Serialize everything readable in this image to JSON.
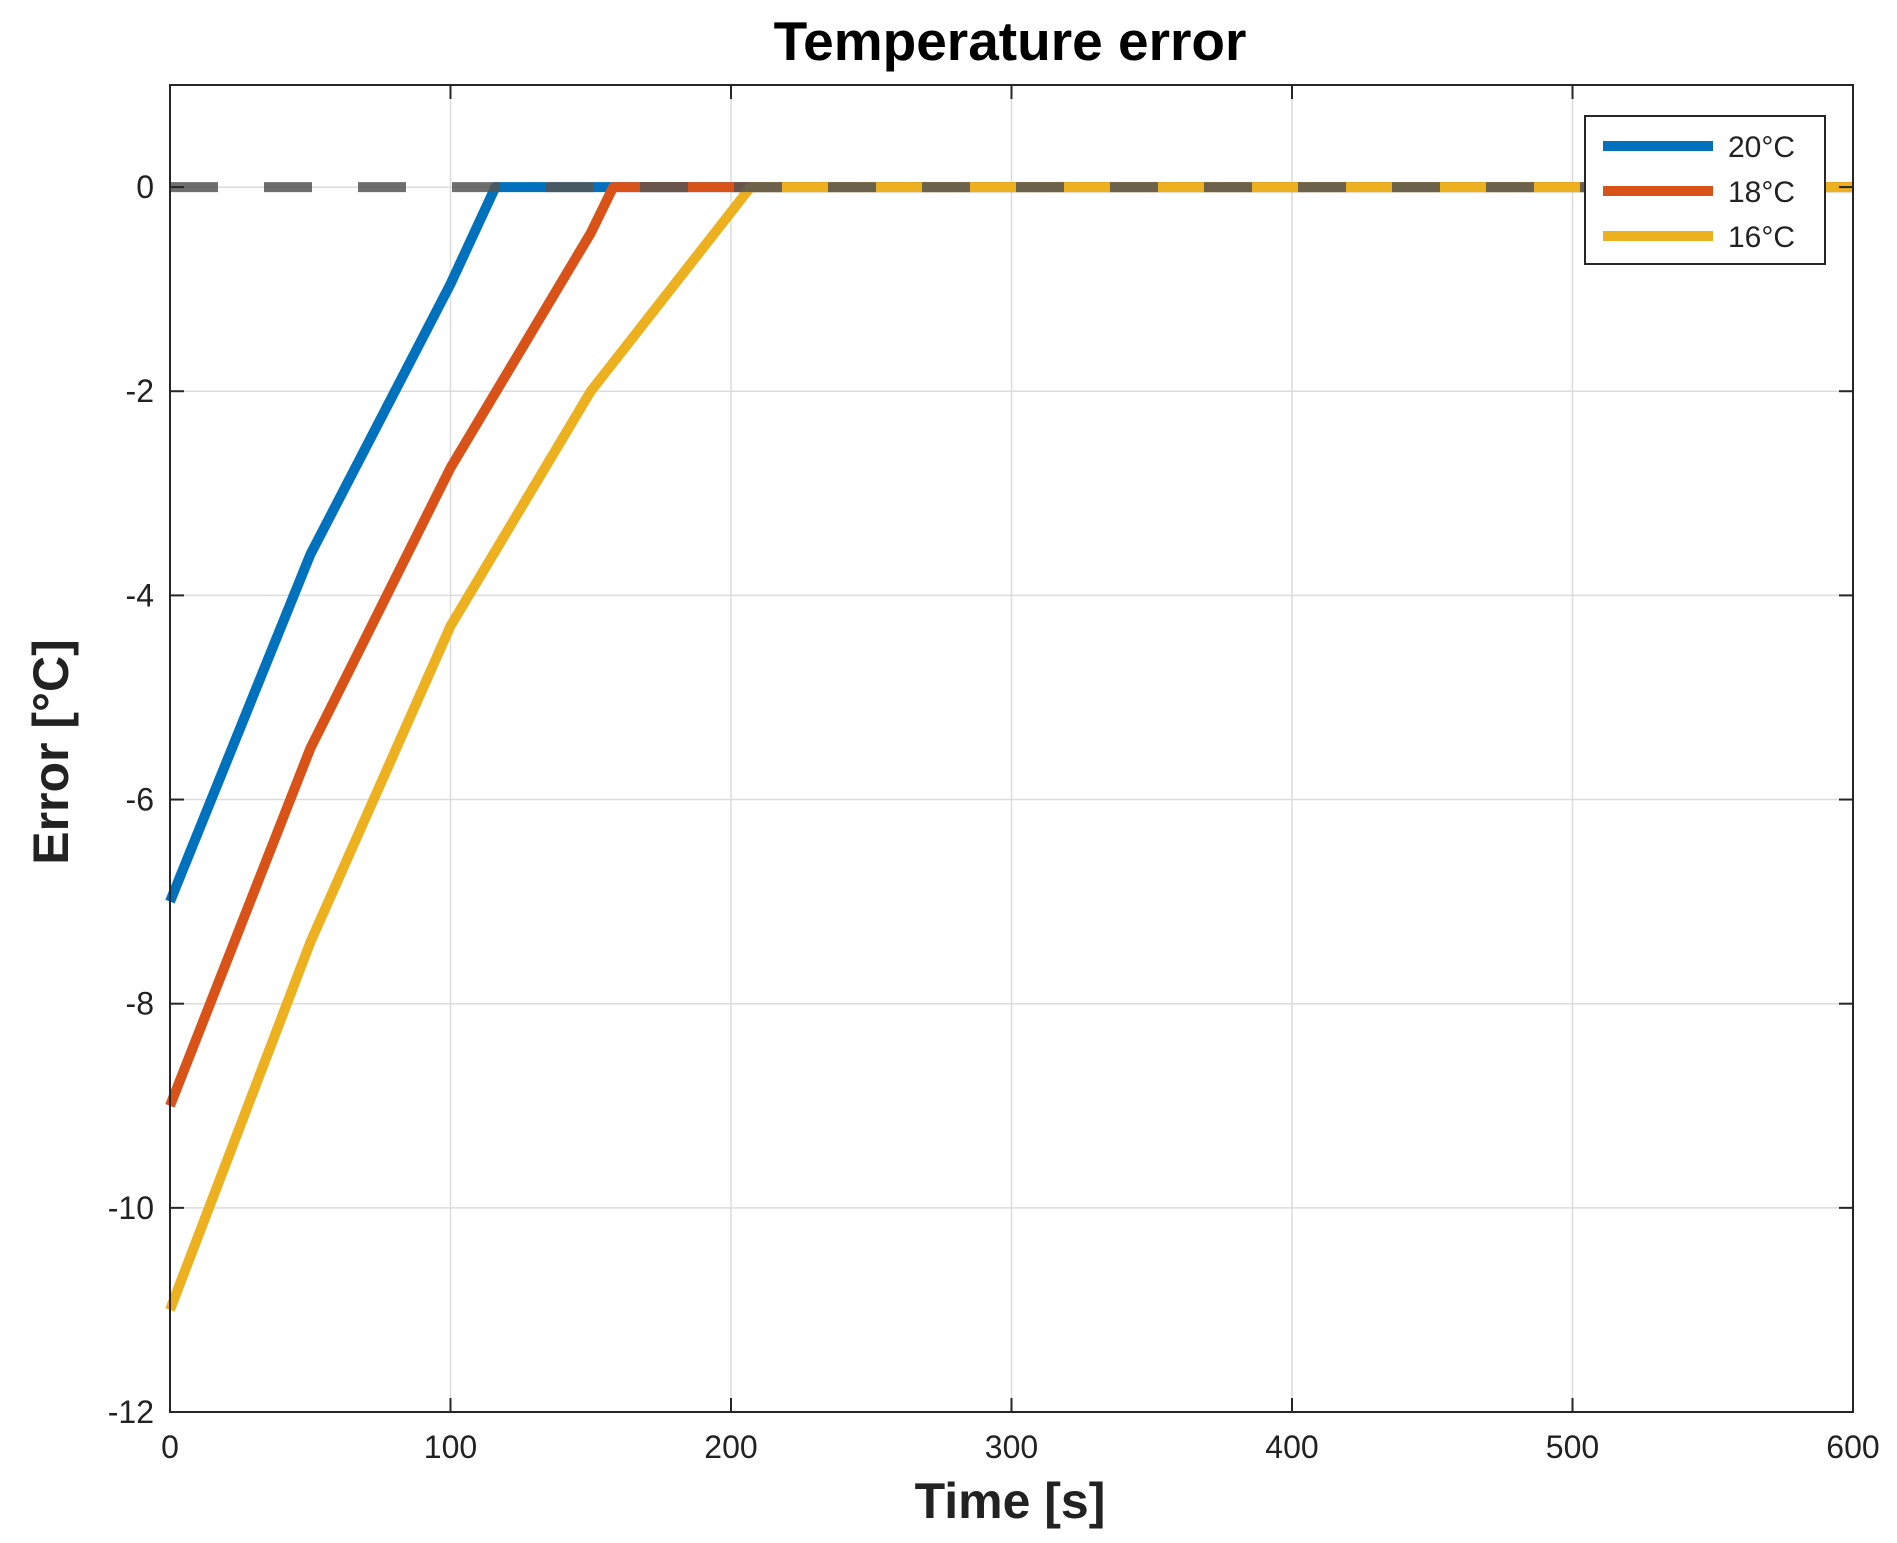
{
  "chart_data": {
    "type": "line",
    "title": "Temperature error",
    "xlabel": "Time [s]",
    "ylabel": "Error [°C]",
    "xlim": [
      0,
      600
    ],
    "ylim": [
      -12,
      1
    ],
    "xticks": [
      0,
      100,
      200,
      300,
      400,
      500,
      600
    ],
    "yticks": [
      0,
      -2,
      -4,
      -6,
      -8,
      -10,
      -12
    ],
    "xtick_labels": [
      "0",
      "100",
      "200",
      "300",
      "400",
      "500",
      "600"
    ],
    "ytick_labels": [
      "0",
      "-2",
      "-4",
      "-6",
      "-8",
      "-10",
      "-12"
    ],
    "grid": true,
    "legend_position": "top-right",
    "reference_line": {
      "y": 0,
      "style": "dashed",
      "color": "#555555"
    },
    "series": [
      {
        "name": "20°C",
        "color": "#0072BD",
        "x": [
          0,
          50,
          100,
          116,
          600
        ],
        "y": [
          -7,
          -3.6,
          -0.95,
          0,
          0
        ]
      },
      {
        "name": "18°C",
        "color": "#D95319",
        "x": [
          0,
          50,
          100,
          150,
          158,
          600
        ],
        "y": [
          -9,
          -5.5,
          -2.75,
          -0.45,
          0,
          0
        ]
      },
      {
        "name": "16°C",
        "color": "#EDB120",
        "x": [
          0,
          50,
          100,
          150,
          207,
          600
        ],
        "y": [
          -11,
          -7.4,
          -4.3,
          -2.0,
          0,
          0
        ]
      }
    ]
  }
}
